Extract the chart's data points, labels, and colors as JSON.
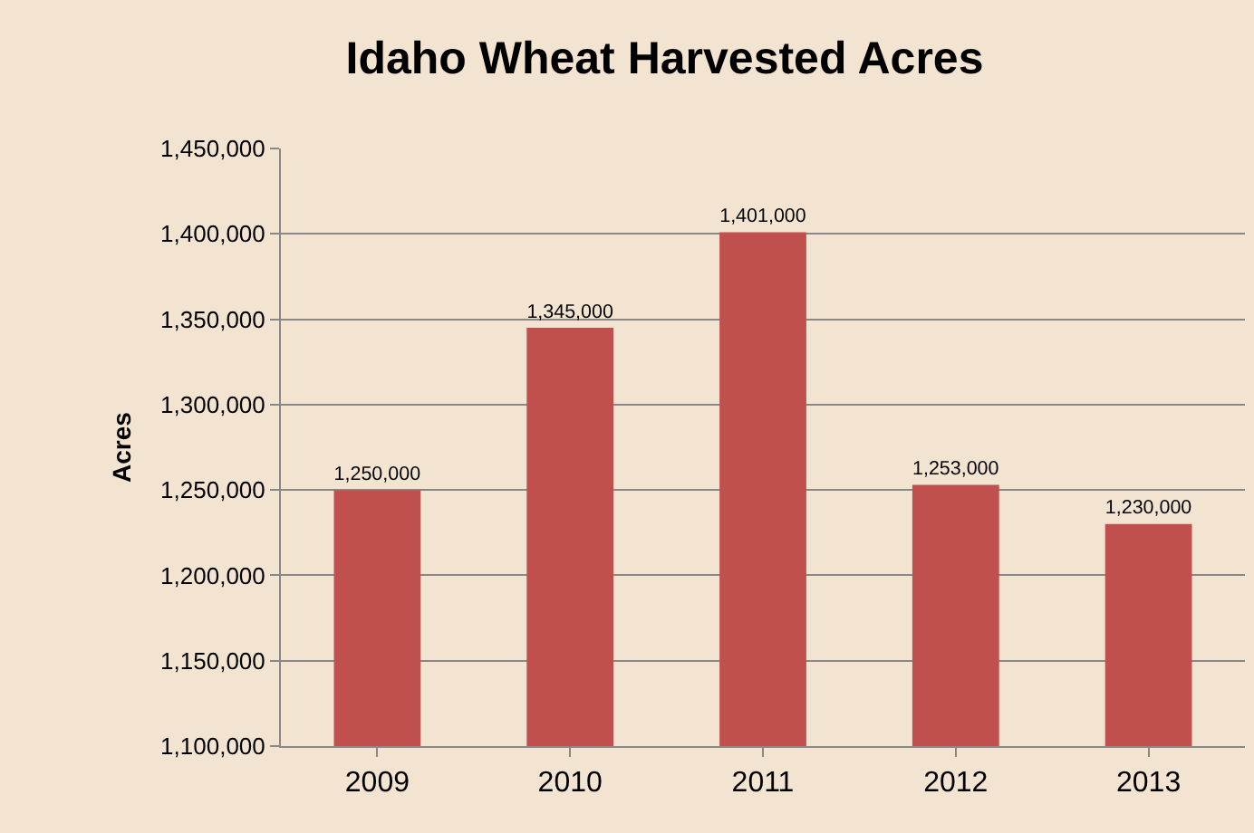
{
  "chart_data": {
    "type": "bar",
    "title": "Idaho Wheat Harvested Acres",
    "ylabel": "Acres",
    "categories": [
      "2009",
      "2010",
      "2011",
      "2012",
      "2013"
    ],
    "values": [
      1250000,
      1345000,
      1401000,
      1253000,
      1230000
    ],
    "value_labels": [
      "1,250,000",
      "1,345,000",
      "1,401,000",
      "1,253,000",
      "1,230,000"
    ],
    "color": "#c0504d",
    "grid": "y",
    "ylim": [
      1100000,
      1450000
    ],
    "yticks": [
      {
        "value": 1100000,
        "label": "1,100,000"
      },
      {
        "value": 1150000,
        "label": "1,150,000"
      },
      {
        "value": 1200000,
        "label": "1,200,000"
      },
      {
        "value": 1250000,
        "label": "1,250,000"
      },
      {
        "value": 1300000,
        "label": "1,300,000"
      },
      {
        "value": 1350000,
        "label": "1,350,000"
      },
      {
        "value": 1400000,
        "label": "1,400,000"
      },
      {
        "value": 1450000,
        "label": "1,450,000"
      }
    ]
  }
}
